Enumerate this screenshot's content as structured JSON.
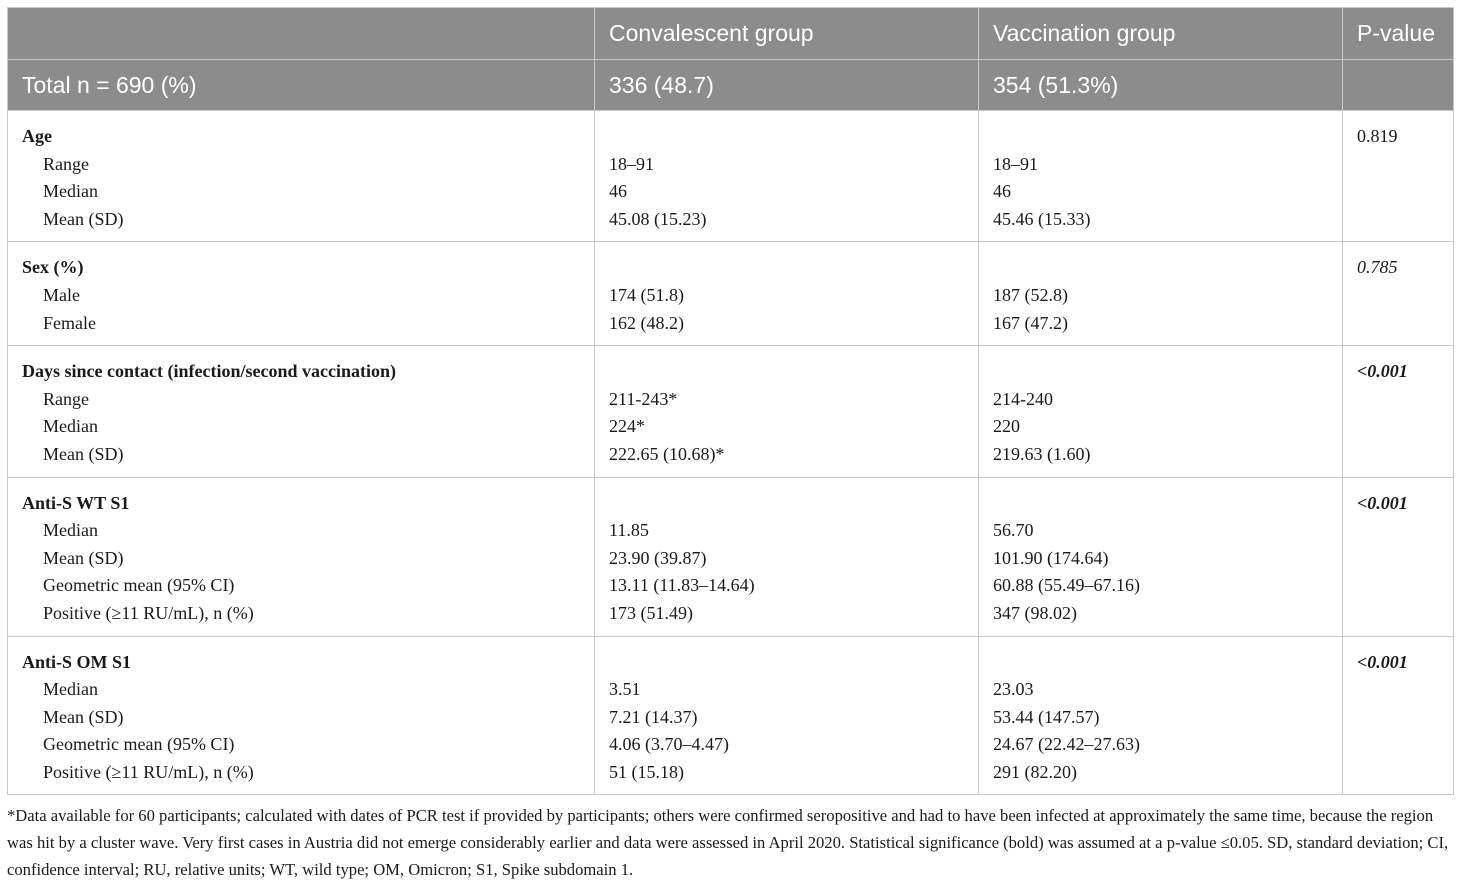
{
  "table": {
    "header": {
      "columns": [
        "Convalescent group",
        "Vaccination group",
        "P-value"
      ],
      "total": [
        "Total n = 690 (%)",
        "336 (48.7)",
        "354 (51.3%)"
      ]
    },
    "sections": [
      {
        "title": "Age",
        "p_value": "0.819",
        "rows": [
          [
            "Range",
            "18–91",
            "18–91"
          ],
          [
            "Median",
            "46",
            "46"
          ],
          [
            "Mean (SD)",
            "45.08 (15.23)",
            "45.46 (15.33)"
          ]
        ]
      },
      {
        "title": "Sex (%)",
        "p_value": "0.785",
        "rows": [
          [
            "Male",
            "174 (51.8)",
            "187 (52.8)"
          ],
          [
            "Female",
            "162 (48.2)",
            "167 (47.2)"
          ]
        ]
      },
      {
        "title": "Days since contact (infection/second vaccination)",
        "p_value": "<0.001",
        "rows": [
          [
            "Range",
            "211-243*",
            "214-240"
          ],
          [
            "Median",
            "224*",
            "220"
          ],
          [
            "Mean (SD)",
            "222.65 (10.68)*",
            "219.63 (1.60)"
          ]
        ]
      },
      {
        "title": "Anti-S WT S1",
        "p_value": "<0.001",
        "rows": [
          [
            "Median",
            "11.85",
            "56.70"
          ],
          [
            "Mean (SD)",
            "23.90 (39.87)",
            "101.90 (174.64)"
          ],
          [
            "Geometric mean (95% CI)",
            "13.11 (11.83–14.64)",
            "60.88 (55.49–67.16)"
          ],
          [
            "Positive (≥11 RU/mL), n (%)",
            "173 (51.49)",
            "347 (98.02)"
          ]
        ]
      },
      {
        "title": "Anti-S OM S1",
        "p_value": "<0.001",
        "rows": [
          [
            "Median",
            "3.51",
            "23.03"
          ],
          [
            "Mean (SD)",
            "7.21 (14.37)",
            "53.44 (147.57)"
          ],
          [
            "Geometric mean (95% CI)",
            "4.06 (3.70–4.47)",
            "24.67 (22.42–27.63)"
          ],
          [
            "Positive (≥11 RU/mL), n (%)",
            "51 (15.18)",
            "291 (82.20)"
          ]
        ]
      }
    ]
  },
  "footnote": "*Data available for 60 participants; calculated with dates of PCR test if provided by participants; others were confirmed seropositive and had to have been infected at approximately the same time, because the region was hit by a cluster wave. Very first cases in Austria did not emerge considerably earlier and data were assessed in April 2020. Statistical significance (bold) was assumed at a p-value ≤0.05. SD, standard deviation; CI, confidence interval; RU, relative units; WT, wild type; OM, Omicron; S1, Spike subdomain 1."
}
